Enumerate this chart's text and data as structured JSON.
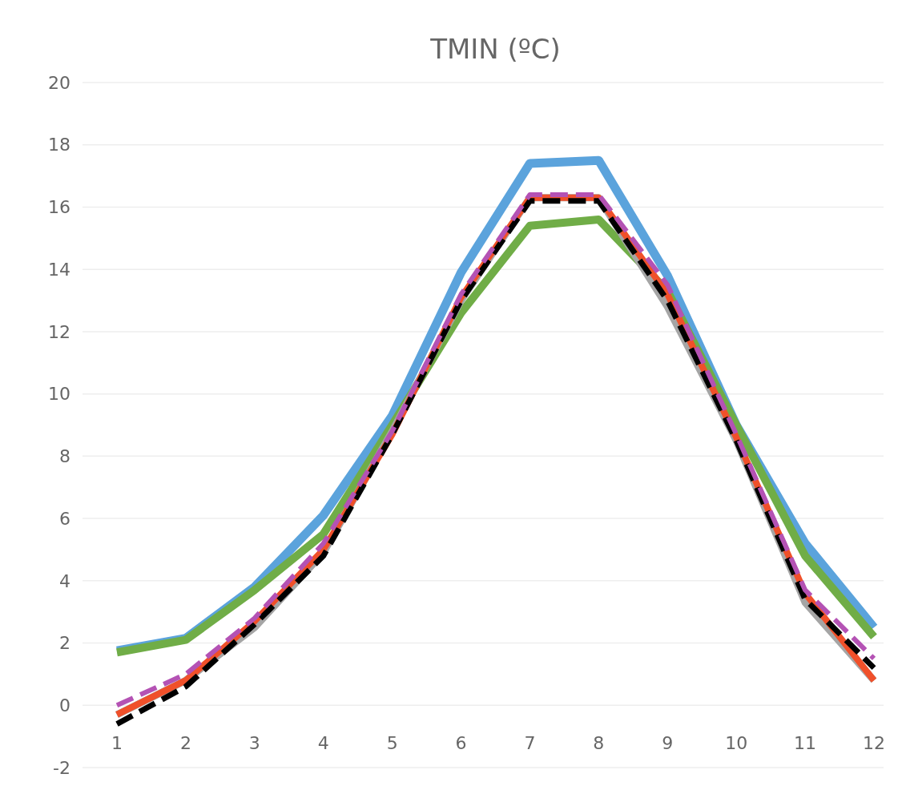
{
  "chart_data": {
    "type": "line",
    "title": "TMIN (ºC)",
    "categories": [
      "1",
      "2",
      "3",
      "4",
      "5",
      "6",
      "7",
      "8",
      "9",
      "10",
      "11",
      "12"
    ],
    "ylim": [
      -2,
      20
    ],
    "yticks": [
      -2,
      0,
      2,
      4,
      6,
      8,
      10,
      12,
      14,
      16,
      18,
      20
    ],
    "grid": "y",
    "series": [
      {
        "color": "#5ba3dc",
        "line_style": "solid",
        "values": [
          1.75,
          2.15,
          3.8,
          6.1,
          9.3,
          13.9,
          17.4,
          17.5,
          13.8,
          9.0,
          5.2,
          2.5
        ]
      },
      {
        "color": "#70ad47",
        "line_style": "solid",
        "values": [
          1.7,
          2.1,
          3.7,
          5.5,
          9.0,
          12.6,
          15.4,
          15.6,
          13.3,
          9.0,
          4.8,
          2.2
        ]
      },
      {
        "color": "#a5a5a5",
        "line_style": "solid",
        "values": [
          -0.3,
          0.8,
          2.5,
          4.9,
          8.8,
          13.0,
          16.3,
          16.3,
          12.8,
          8.5,
          3.3,
          0.8
        ]
      },
      {
        "color": "#f0502a",
        "line_style": "solid",
        "values": [
          -0.3,
          0.8,
          2.7,
          5.0,
          8.7,
          13.1,
          16.3,
          16.3,
          13.2,
          8.6,
          3.6,
          0.8
        ]
      },
      {
        "color": "#000000",
        "line_style": "dashed",
        "values": [
          -0.6,
          0.6,
          2.6,
          4.8,
          8.7,
          13.0,
          16.2,
          16.2,
          13.0,
          8.5,
          3.4,
          1.2
        ]
      },
      {
        "color": "#b452b4",
        "line_style": "dashed",
        "values": [
          0.0,
          1.0,
          2.8,
          5.2,
          8.8,
          13.2,
          16.4,
          16.4,
          13.5,
          8.7,
          3.7,
          1.5
        ]
      }
    ]
  }
}
